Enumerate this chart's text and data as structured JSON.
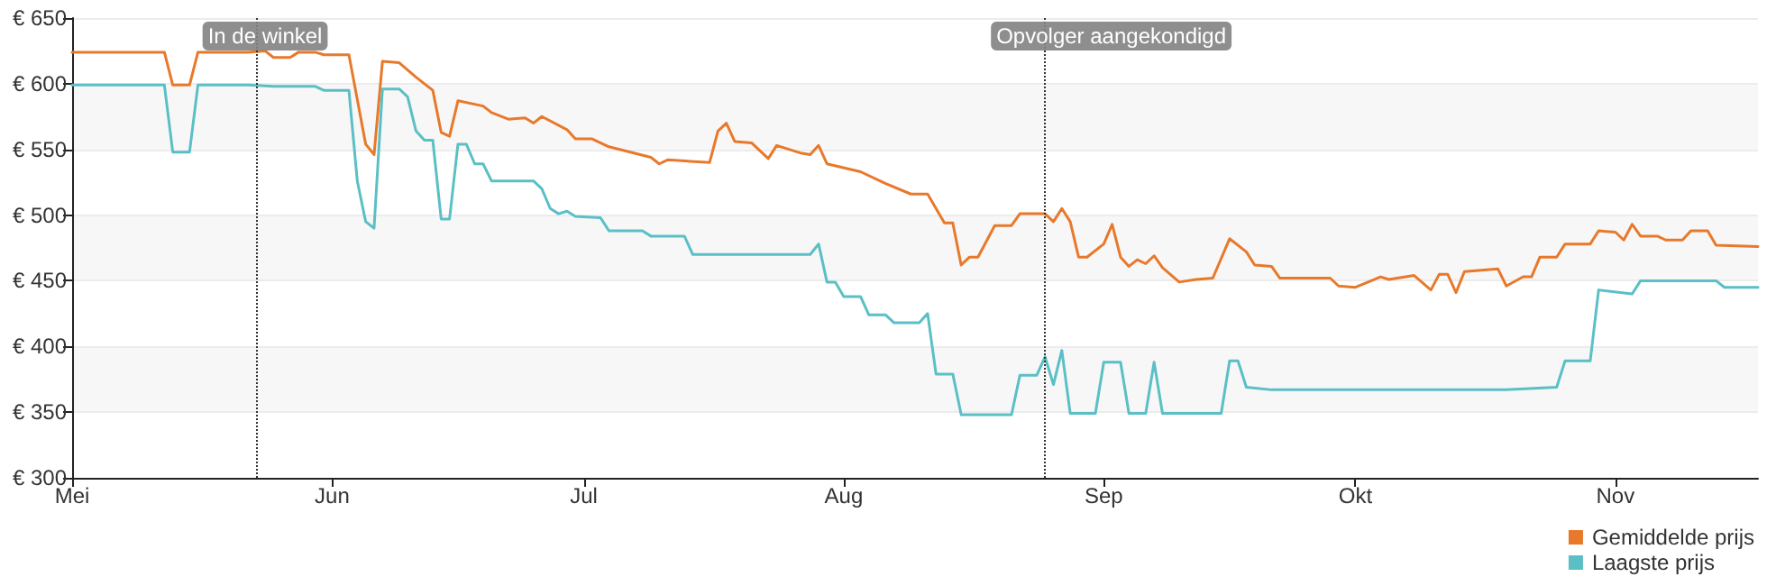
{
  "chart_data": {
    "type": "line",
    "xlim": [
      "--05-01",
      "--11-18"
    ],
    "xticks": [
      {
        "value": "--05-01",
        "label": "Mei"
      },
      {
        "value": "--06-01",
        "label": "Jun"
      },
      {
        "value": "--07-01",
        "label": "Jul"
      },
      {
        "value": "--08-01",
        "label": "Aug"
      },
      {
        "value": "--09-01",
        "label": "Sep"
      },
      {
        "value": "--10-01",
        "label": "Okt"
      },
      {
        "value": "--11-01",
        "label": "Nov"
      }
    ],
    "ylim": [
      300,
      650
    ],
    "yticks": [
      {
        "value": 300,
        "label": "€ 300"
      },
      {
        "value": 350,
        "label": "€ 350"
      },
      {
        "value": 400,
        "label": "€ 400"
      },
      {
        "value": 450,
        "label": "€ 450"
      },
      {
        "value": 500,
        "label": "€ 500"
      },
      {
        "value": 550,
        "label": "€ 550"
      },
      {
        "value": 600,
        "label": "€ 600"
      },
      {
        "value": 650,
        "label": "€ 650"
      }
    ],
    "grid": "y",
    "legend": "bottom right",
    "marker": "none",
    "line_style": "solid",
    "series": [
      {
        "name": "Gemiddelde prijs",
        "color": "#e8792b",
        "x": [
          "--05-01",
          "--05-12",
          "--05-13",
          "--05-15",
          "--05-16",
          "--05-22",
          "--05-24",
          "--05-25",
          "--05-27",
          "--05-28",
          "--05-30",
          "--05-31",
          "--06-03",
          "--06-05",
          "--06-06",
          "--06-07",
          "--06-09",
          "--06-11",
          "--06-13",
          "--06-14",
          "--06-15",
          "--06-16",
          "--06-19",
          "--06-20",
          "--06-22",
          "--06-24",
          "--06-25",
          "--06-26",
          "--06-29",
          "--06-30",
          "--07-02",
          "--07-04",
          "--07-09",
          "--07-10",
          "--07-11",
          "--07-16",
          "--07-17",
          "--07-18",
          "--07-19",
          "--07-21",
          "--07-23",
          "--07-24",
          "--07-27",
          "--07-28",
          "--07-29",
          "--07-30",
          "--08-03",
          "--08-06",
          "--08-09",
          "--08-11",
          "--08-13",
          "--08-14",
          "--08-15",
          "--08-16",
          "--08-17",
          "--08-19",
          "--08-21",
          "--08-22",
          "--08-25",
          "--08-26",
          "--08-27",
          "--08-28",
          "--08-29",
          "--08-30",
          "--09-01",
          "--09-02",
          "--09-03",
          "--09-04",
          "--09-05",
          "--09-06",
          "--09-07",
          "--09-08",
          "--09-10",
          "--09-12",
          "--09-14",
          "--09-16",
          "--09-18",
          "--09-19",
          "--09-21",
          "--09-22",
          "--09-28",
          "--09-29",
          "--10-01",
          "--10-04",
          "--10-05",
          "--10-08",
          "--10-10",
          "--10-11",
          "--10-12",
          "--10-13",
          "--10-14",
          "--10-18",
          "--10-19",
          "--10-21",
          "--10-22",
          "--10-23",
          "--10-25",
          "--10-26",
          "--10-29",
          "--10-30",
          "--11-01",
          "--11-02",
          "--11-03",
          "--11-04",
          "--11-06",
          "--11-07",
          "--11-09",
          "--11-10",
          "--11-12",
          "--11-13",
          "--11-18"
        ],
        "values": [
          624,
          624,
          599,
          599,
          624,
          624,
          625,
          620,
          620,
          624,
          624,
          622,
          622,
          554,
          546,
          617,
          616,
          605,
          595,
          563,
          560,
          587,
          583,
          578,
          573,
          574,
          570,
          575,
          565,
          558,
          558,
          552,
          544,
          539,
          542,
          540,
          564,
          570,
          556,
          555,
          543,
          553,
          547,
          546,
          553,
          539,
          533,
          524,
          516,
          516,
          494,
          494,
          462,
          468,
          468,
          492,
          492,
          501,
          501,
          495,
          505,
          495,
          468,
          468,
          478,
          493,
          468,
          461,
          466,
          463,
          469,
          460,
          449,
          451,
          452,
          482,
          472,
          462,
          461,
          452,
          452,
          446,
          445,
          453,
          451,
          454,
          443,
          455,
          455,
          441,
          457,
          459,
          446,
          453,
          453,
          468,
          468,
          478,
          478,
          488,
          487,
          481,
          493,
          484,
          484,
          481,
          481,
          488,
          488,
          477,
          476
        ]
      },
      {
        "name": "Laagste prijs",
        "color": "#5bbfc6",
        "x": [
          "--05-01",
          "--05-12",
          "--05-13",
          "--05-15",
          "--05-16",
          "--05-22",
          "--05-25",
          "--05-30",
          "--05-31",
          "--06-03",
          "--06-04",
          "--06-05",
          "--06-06",
          "--06-07",
          "--06-09",
          "--06-10",
          "--06-11",
          "--06-12",
          "--06-13",
          "--06-14",
          "--06-15",
          "--06-16",
          "--06-17",
          "--06-18",
          "--06-19",
          "--06-20",
          "--06-25",
          "--06-26",
          "--06-27",
          "--06-28",
          "--06-29",
          "--06-30",
          "--07-03",
          "--07-04",
          "--07-08",
          "--07-09",
          "--07-13",
          "--07-14",
          "--07-28",
          "--07-29",
          "--07-30",
          "--07-31",
          "--08-01",
          "--08-03",
          "--08-04",
          "--08-06",
          "--08-07",
          "--08-10",
          "--08-11",
          "--08-12",
          "--08-14",
          "--08-15",
          "--08-21",
          "--08-22",
          "--08-24",
          "--08-25",
          "--08-26",
          "--08-27",
          "--08-28",
          "--08-31",
          "--09-01",
          "--09-03",
          "--09-04",
          "--09-06",
          "--09-07",
          "--09-08",
          "--09-15",
          "--09-16",
          "--09-17",
          "--09-18",
          "--09-21",
          "--10-19",
          "--10-25",
          "--10-26",
          "--10-29",
          "--10-30",
          "--11-03",
          "--11-04",
          "--11-13",
          "--11-14",
          "--11-18"
        ],
        "values": [
          599,
          599,
          548,
          548,
          599,
          599,
          598,
          598,
          595,
          595,
          526,
          495,
          490,
          596,
          596,
          590,
          564,
          557,
          557,
          497,
          497,
          554,
          554,
          539,
          539,
          526,
          526,
          520,
          505,
          501,
          503,
          499,
          498,
          488,
          488,
          484,
          484,
          470,
          470,
          478,
          449,
          449,
          438,
          438,
          424,
          424,
          418,
          418,
          425,
          379,
          379,
          348,
          348,
          378,
          378,
          392,
          371,
          397,
          349,
          349,
          388,
          388,
          349,
          349,
          388,
          349,
          349,
          389,
          389,
          369,
          367,
          367,
          369,
          389,
          389,
          443,
          440,
          450,
          450,
          445,
          445
        ]
      }
    ],
    "ref_lines": [
      {
        "axis": "x",
        "value": "--05-23",
        "label": "In de winkel",
        "line_style": "dotted"
      },
      {
        "axis": "x",
        "value": "--08-25",
        "label": "Opvolger aangekondigd",
        "line_style": "dotted"
      }
    ]
  }
}
